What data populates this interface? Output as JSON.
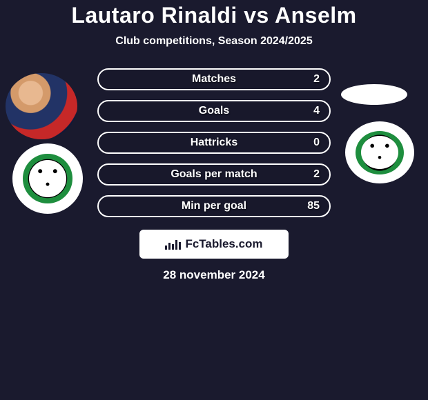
{
  "title": "Lautaro Rinaldi vs Anselm",
  "subtitle": "Club competitions, Season 2024/2025",
  "date": "28 november 2024",
  "footer_brand": "FcTables.com",
  "colors": {
    "background": "#1a1a2e",
    "pill_border": "#ffffff",
    "text": "#ffffff",
    "footer_bg": "#ffffff",
    "footer_text": "#1a1a2e"
  },
  "stats": {
    "pill_width": 338,
    "pill_height": 32,
    "pill_radius": 16,
    "label_fontsize": 16,
    "gap": 14,
    "rows": [
      {
        "label": "Matches",
        "value": "2"
      },
      {
        "label": "Goals",
        "value": "4"
      },
      {
        "label": "Hattricks",
        "value": "0"
      },
      {
        "label": "Goals per match",
        "value": "2"
      },
      {
        "label": "Min per goal",
        "value": "85"
      }
    ]
  }
}
